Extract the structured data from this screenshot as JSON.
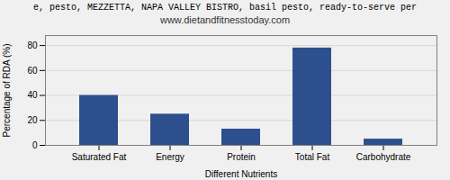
{
  "chart_data": {
    "type": "bar",
    "title": "e, pesto, MEZZETTA, NAPA VALLEY BISTRO, basil pesto, ready-to-serve per",
    "subtitle": "www.dietandfitnesstoday.com",
    "categories": [
      "Saturated Fat",
      "Energy",
      "Protein",
      "Total Fat",
      "Carbohydrate"
    ],
    "values": [
      40,
      25,
      13,
      78,
      5
    ],
    "color": "#2d4f8e",
    "xlabel": "Different Nutrients",
    "ylabel": "Percentage of RDA (%)",
    "ylim": [
      0,
      88
    ],
    "yticks": [
      0,
      20,
      40,
      60,
      80
    ],
    "grid": true
  }
}
